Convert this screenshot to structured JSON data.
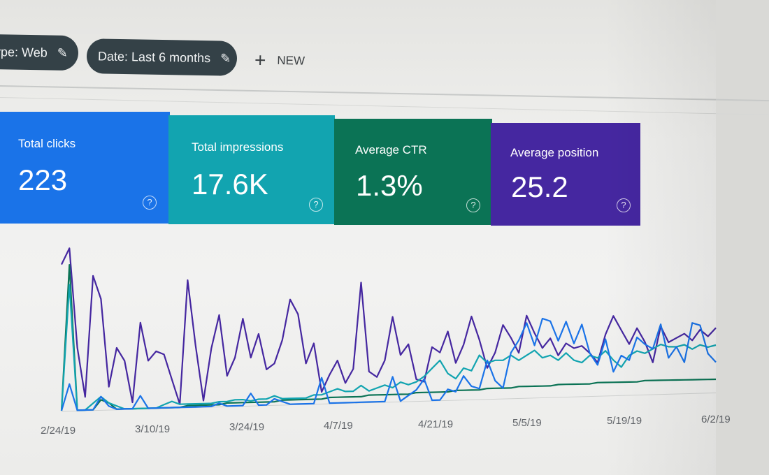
{
  "filters": {
    "type_chip": "ype: Web",
    "date_chip": "Date: Last 6 months",
    "new_label": "NEW"
  },
  "metrics": {
    "clicks": {
      "label": "Total clicks",
      "value": "223",
      "color": "#1a73e8"
    },
    "impressions": {
      "label": "Total impressions",
      "value": "17.6K",
      "color": "#12a4b0"
    },
    "ctr": {
      "label": "Average CTR",
      "value": "1.3%",
      "color": "#0b7355"
    },
    "position": {
      "label": "Average position",
      "value": "25.2",
      "color": "#4527a0"
    }
  },
  "icons": {
    "edit": "pencil-icon",
    "add": "plus-icon",
    "help": "question-circle-icon"
  },
  "chart_data": {
    "type": "line",
    "x_tick_labels": [
      "2/24/19",
      "3/10/19",
      "3/24/19",
      "4/7/19",
      "4/21/19",
      "5/5/19",
      "5/19/19",
      "6/2/19"
    ],
    "grid": false,
    "legend": "none",
    "series": [
      {
        "metric": "position",
        "color": "#4527a0",
        "values": [
          88,
          98,
          38,
          8,
          82,
          68,
          14,
          38,
          30,
          4,
          54,
          30,
          36,
          34,
          18,
          2,
          82,
          40,
          4,
          38,
          60,
          20,
          32,
          58,
          32,
          48,
          24,
          28,
          44,
          72,
          62,
          28,
          42,
          8,
          20,
          30,
          14,
          24,
          86,
          22,
          18,
          30,
          62,
          34,
          42,
          16,
          14,
          40,
          36,
          52,
          28,
          42,
          64,
          46,
          24,
          36,
          58,
          48,
          36,
          66,
          52,
          40,
          48,
          34,
          44,
          40,
          42,
          36,
          28,
          52,
          68,
          56,
          44,
          58,
          46,
          28,
          60,
          46,
          50,
          54,
          48,
          58,
          52,
          60
        ]
      },
      {
        "metric": "ctr",
        "color": "#0b7355",
        "values": [
          0,
          88,
          0,
          0,
          0,
          6,
          4,
          0,
          0,
          0,
          0,
          0,
          0,
          0,
          0,
          0,
          1,
          1,
          1,
          1,
          1,
          2,
          2,
          2,
          2,
          2,
          2,
          2,
          3,
          3,
          3,
          3,
          3,
          3,
          4,
          4,
          4,
          4,
          4,
          5,
          5,
          5,
          5,
          5,
          5,
          6,
          6,
          6,
          6,
          6,
          7,
          7,
          7,
          7,
          8,
          8,
          8,
          8,
          9,
          9,
          9,
          9,
          9,
          10,
          10,
          10,
          10,
          10,
          11,
          11,
          11,
          11,
          11,
          11,
          12,
          12,
          12,
          12,
          12,
          12,
          12,
          12,
          12,
          12
        ]
      },
      {
        "metric": "impressions",
        "color": "#12a4b0",
        "values": [
          0,
          76,
          0,
          0,
          4,
          8,
          4,
          2,
          0,
          0,
          0,
          0,
          0,
          2,
          4,
          2,
          2,
          2,
          2,
          2,
          3,
          3,
          4,
          4,
          3,
          4,
          4,
          6,
          4,
          4,
          4,
          4,
          6,
          6,
          8,
          10,
          8,
          8,
          12,
          8,
          10,
          12,
          10,
          14,
          12,
          14,
          18,
          24,
          30,
          20,
          16,
          24,
          22,
          34,
          28,
          30,
          30,
          34,
          30,
          34,
          38,
          32,
          34,
          30,
          36,
          30,
          28,
          34,
          32,
          38,
          30,
          24,
          34,
          38,
          36,
          40,
          44,
          42,
          42,
          44,
          40,
          44,
          42,
          44
        ]
      },
      {
        "metric": "clicks",
        "color": "#1a73e8",
        "values": [
          0,
          16,
          0,
          0,
          0,
          8,
          2,
          0,
          0,
          0,
          8,
          0,
          0,
          0,
          0,
          0,
          0,
          0,
          0,
          0,
          2,
          0,
          0,
          0,
          8,
          0,
          0,
          4,
          2,
          0,
          0,
          0,
          0,
          18,
          0,
          0,
          0,
          0,
          0,
          0,
          0,
          0,
          18,
          0,
          4,
          8,
          16,
          0,
          0,
          8,
          6,
          18,
          10,
          8,
          30,
          14,
          8,
          36,
          46,
          60,
          42,
          64,
          62,
          46,
          62,
          44,
          60,
          36,
          26,
          48,
          20,
          34,
          30,
          50,
          44,
          40,
          62,
          32,
          42,
          28,
          64,
          62,
          36,
          28
        ]
      }
    ]
  }
}
